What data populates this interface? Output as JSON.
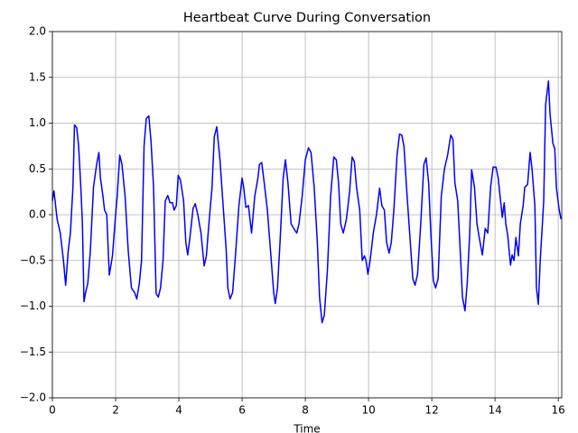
{
  "chart_data": {
    "type": "line",
    "title": "Heartbeat Curve During Conversation",
    "x_label": "Time",
    "x": [
      0,
      0.05,
      0.15,
      0.25,
      0.35,
      0.42,
      0.5,
      0.57,
      0.65,
      0.7,
      0.77,
      0.83,
      0.9,
      0.95,
      1.0,
      1.05,
      1.12,
      1.2,
      1.3,
      1.4,
      1.47,
      1.52,
      1.6,
      1.65,
      1.72,
      1.8,
      1.9,
      2.0,
      2.05,
      2.13,
      2.2,
      2.3,
      2.4,
      2.5,
      2.6,
      2.67,
      2.75,
      2.82,
      2.9,
      2.97,
      3.05,
      3.12,
      3.2,
      3.28,
      3.35,
      3.42,
      3.5,
      3.57,
      3.65,
      3.72,
      3.8,
      3.85,
      3.92,
      3.98,
      4.05,
      4.15,
      4.22,
      4.28,
      4.35,
      4.45,
      4.52,
      4.6,
      4.7,
      4.8,
      4.87,
      4.95,
      5.05,
      5.12,
      5.2,
      5.3,
      5.4,
      5.5,
      5.55,
      5.62,
      5.7,
      5.8,
      5.9,
      6.0,
      6.05,
      6.12,
      6.2,
      6.3,
      6.4,
      6.5,
      6.55,
      6.62,
      6.7,
      6.8,
      6.9,
      7.0,
      7.05,
      7.12,
      7.2,
      7.3,
      7.37,
      7.45,
      7.55,
      7.65,
      7.73,
      7.8,
      7.9,
      8.0,
      8.1,
      8.18,
      8.28,
      8.38,
      8.45,
      8.53,
      8.6,
      8.7,
      8.8,
      8.9,
      8.98,
      9.05,
      9.12,
      9.2,
      9.3,
      9.4,
      9.48,
      9.55,
      9.62,
      9.72,
      9.8,
      9.87,
      9.92,
      9.98,
      10.05,
      10.15,
      10.25,
      10.35,
      10.42,
      10.5,
      10.57,
      10.65,
      10.72,
      10.8,
      10.9,
      10.98,
      11.05,
      11.12,
      11.2,
      11.3,
      11.4,
      11.47,
      11.55,
      11.65,
      11.75,
      11.82,
      11.9,
      11.97,
      12.05,
      12.12,
      12.2,
      12.3,
      12.4,
      12.5,
      12.6,
      12.67,
      12.73,
      12.82,
      12.9,
      12.97,
      13.05,
      13.12,
      13.2,
      13.26,
      13.35,
      13.43,
      13.5,
      13.6,
      13.69,
      13.77,
      13.86,
      13.94,
      14.03,
      14.1,
      14.23,
      14.29,
      14.34,
      14.4,
      14.49,
      14.54,
      14.6,
      14.66,
      14.74,
      14.8,
      14.89,
      14.94,
      15.03,
      15.11,
      15.17,
      15.26,
      15.31,
      15.37,
      15.43,
      15.54,
      15.6,
      15.69,
      15.74,
      15.83,
      15.89,
      15.94,
      16.03,
      16.09
    ],
    "series": [
      {
        "color": "#0000ff",
        "values": [
          0.15,
          0.26,
          -0.05,
          -0.2,
          -0.5,
          -0.77,
          -0.4,
          -0.2,
          0.3,
          0.98,
          0.95,
          0.75,
          0.3,
          -0.1,
          -0.95,
          -0.85,
          -0.75,
          -0.4,
          0.3,
          0.55,
          0.68,
          0.4,
          0.2,
          0.05,
          0,
          -0.66,
          -0.45,
          0,
          0.2,
          0.65,
          0.55,
          0.2,
          -0.4,
          -0.8,
          -0.85,
          -0.92,
          -0.75,
          -0.5,
          0.75,
          1.05,
          1.08,
          0.8,
          0.3,
          -0.86,
          -0.9,
          -0.8,
          -0.5,
          0.15,
          0.21,
          0.13,
          0.13,
          0.05,
          0.1,
          0.43,
          0.38,
          0.15,
          -0.3,
          -0.44,
          -0.25,
          0.07,
          0.12,
          0,
          -0.2,
          -0.56,
          -0.45,
          -0.1,
          0.3,
          0.85,
          0.96,
          0.6,
          0.1,
          -0.4,
          -0.8,
          -0.92,
          -0.85,
          -0.4,
          0.1,
          0.4,
          0.3,
          0.08,
          0.1,
          -0.2,
          0.2,
          0.4,
          0.55,
          0.57,
          0.35,
          0.05,
          -0.4,
          -0.85,
          -0.97,
          -0.8,
          -0.3,
          0.4,
          0.6,
          0.35,
          -0.1,
          -0.16,
          -0.2,
          -0.1,
          0.2,
          0.6,
          0.73,
          0.68,
          0.3,
          -0.3,
          -0.9,
          -1.18,
          -1.1,
          -0.6,
          0.2,
          0.63,
          0.6,
          0.35,
          -0.1,
          -0.2,
          -0.05,
          0.25,
          0.63,
          0.58,
          0.3,
          0.05,
          -0.5,
          -0.45,
          -0.5,
          -0.65,
          -0.5,
          -0.2,
          0,
          0.29,
          0.1,
          0.05,
          -0.3,
          -0.42,
          -0.3,
          0.05,
          0.65,
          0.88,
          0.87,
          0.75,
          0.3,
          -0.2,
          -0.7,
          -0.77,
          -0.65,
          -0.1,
          0.55,
          0.62,
          0.35,
          -0.2,
          -0.72,
          -0.8,
          -0.7,
          0.2,
          0.5,
          0.65,
          0.87,
          0.82,
          0.35,
          0.15,
          -0.4,
          -0.9,
          -1.05,
          -0.75,
          -0.2,
          0.49,
          0.3,
          -0.1,
          -0.25,
          -0.44,
          -0.15,
          -0.2,
          0.3,
          0.52,
          0.52,
          0.4,
          -0.03,
          0.13,
          -0.1,
          -0.22,
          -0.55,
          -0.44,
          -0.5,
          -0.25,
          -0.45,
          -0.1,
          0.1,
          0.3,
          0.33,
          0.68,
          0.5,
          0.1,
          -0.8,
          -0.98,
          -0.5,
          0.15,
          1.2,
          1.46,
          1.1,
          0.78,
          0.72,
          0.3,
          0.05,
          -0.05
        ]
      }
    ],
    "xlim": [
      0,
      16.11
    ],
    "ylim": [
      -2.0,
      2.0
    ],
    "xticks": [
      0,
      2,
      4,
      6,
      8,
      10,
      12,
      14,
      16
    ],
    "yticks": [
      {
        "value": -2.0,
        "label": "−2.0"
      },
      {
        "value": -1.5,
        "label": "−1.5"
      },
      {
        "value": -1.0,
        "label": "−1.0"
      },
      {
        "value": -0.5,
        "label": "−0.5"
      },
      {
        "value": 0.0,
        "label": "0.0"
      },
      {
        "value": 0.5,
        "label": "0.5"
      },
      {
        "value": 1.0,
        "label": "1.0"
      },
      {
        "value": 1.5,
        "label": "1.5"
      },
      {
        "value": 2.0,
        "label": "2.0"
      }
    ],
    "grid": true
  }
}
